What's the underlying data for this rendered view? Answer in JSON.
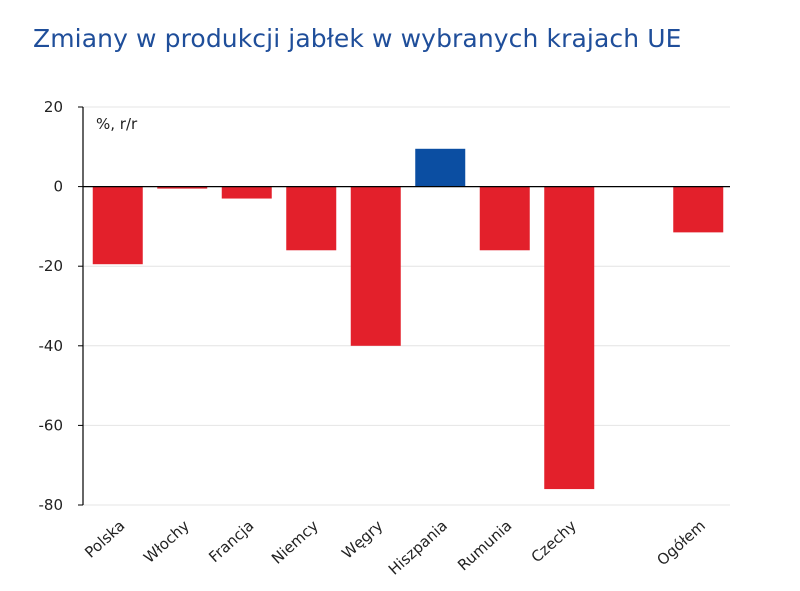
{
  "chart_data": {
    "type": "bar",
    "title": "Zmiany w produkcji jabłek w wybranych krajach UE",
    "unit_label": "%, r/r",
    "categories": [
      "Polska",
      "Włochy",
      "Francja",
      "Niemcy",
      "Węgry",
      "Hiszpania",
      "Rumunia",
      "Czechy",
      "",
      "Ogółem"
    ],
    "values": [
      -19.5,
      -0.5,
      -3,
      -16,
      -40,
      9.5,
      -16,
      -76,
      null,
      -11.5
    ],
    "colors": {
      "negative": "#e3202b",
      "positive": "#0b4ea2",
      "title": "#1f4e9a"
    },
    "ylim": [
      -80,
      20
    ],
    "yticks": [
      20,
      0,
      -20,
      -40,
      -60,
      -80
    ],
    "ytick_labels": [
      "20",
      "0",
      "-20",
      "-40",
      "-60",
      "-80"
    ],
    "xlabel": "",
    "ylabel": "",
    "grid": true,
    "legend": "none"
  }
}
